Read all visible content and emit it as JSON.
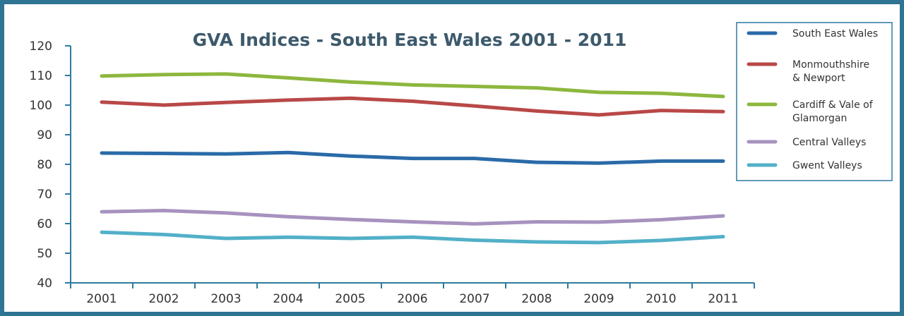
{
  "chart_data": {
    "type": "line",
    "title": "GVA Indices - South East Wales 2001 - 2011",
    "xlabel": "",
    "ylabel": "",
    "ylim": [
      40,
      120
    ],
    "y_ticks": [
      "40",
      "50",
      "60",
      "70",
      "80",
      "90",
      "100",
      "110",
      "120"
    ],
    "categories": [
      "2001",
      "2002",
      "2003",
      "2004",
      "2005",
      "2006",
      "2007",
      "2008",
      "2009",
      "2010",
      "2011"
    ],
    "grid": false,
    "legend_position": "top-right",
    "series": [
      {
        "name": "South East Wales",
        "color": "#2a6aa8",
        "values": [
          83.8,
          83.7,
          83.5,
          84.0,
          82.8,
          82.0,
          82.0,
          80.7,
          80.4,
          81.1,
          81.1
        ]
      },
      {
        "name": "Monmouthshire & Newport",
        "color": "#b94848",
        "values": [
          101.0,
          100.0,
          100.9,
          101.7,
          102.3,
          101.3,
          99.7,
          98.0,
          96.7,
          98.2,
          97.8
        ]
      },
      {
        "name": "Cardiff & Vale of Glamorgan",
        "color": "#8db73e",
        "values": [
          109.8,
          110.3,
          110.5,
          109.2,
          107.8,
          106.8,
          106.3,
          105.8,
          104.3,
          104.0,
          102.9
        ]
      },
      {
        "name": "Central Valleys",
        "color": "#a792bf",
        "values": [
          64.0,
          64.4,
          63.6,
          62.3,
          61.4,
          60.6,
          59.9,
          60.6,
          60.5,
          61.3,
          62.6
        ]
      },
      {
        "name": "Gwent Valleys",
        "color": "#52b0c8",
        "values": [
          57.1,
          56.3,
          55.0,
          55.4,
          55.0,
          55.4,
          54.4,
          53.8,
          53.6,
          54.3,
          55.6
        ]
      }
    ],
    "legend_lines": [
      [
        "South East Wales"
      ],
      [
        "Monmouthshire",
        "& Newport"
      ],
      [
        "Cardiff & Vale of",
        "Glamorgan"
      ],
      [
        "Central Valleys"
      ],
      [
        "Gwent Valleys"
      ]
    ]
  }
}
